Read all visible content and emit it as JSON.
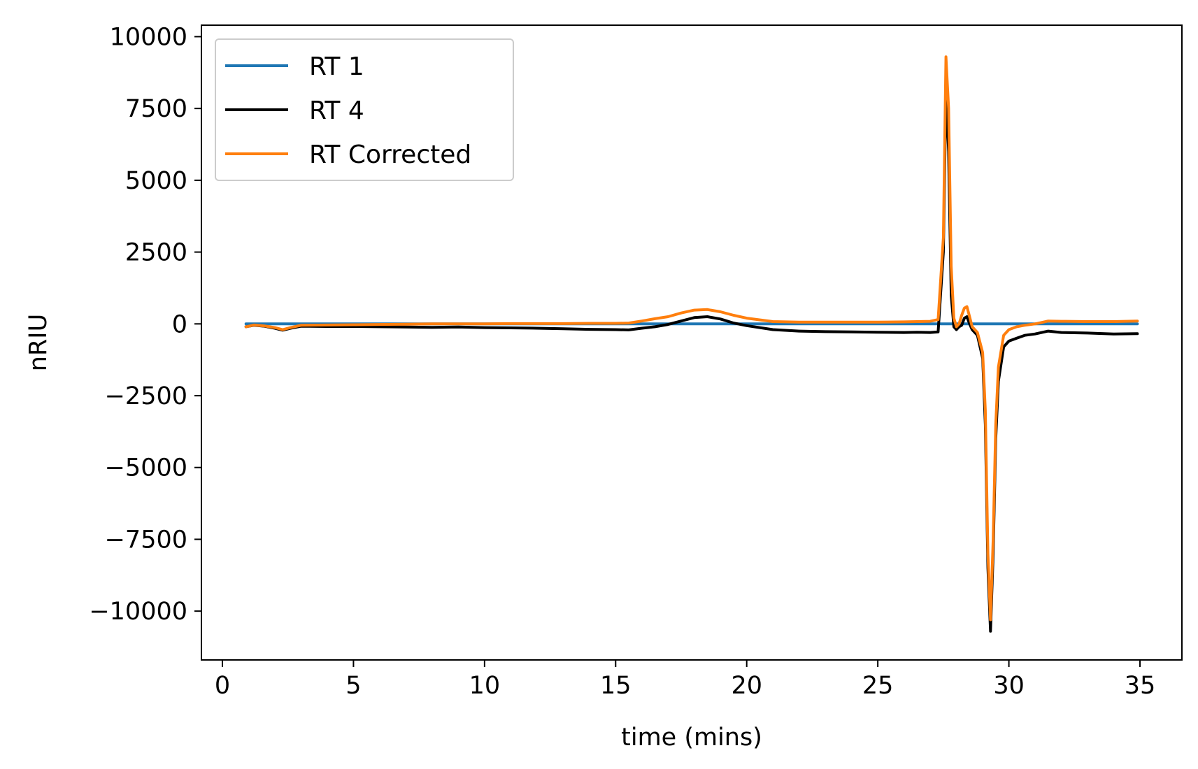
{
  "chart_data": {
    "type": "line",
    "title": "",
    "xlabel": "time (mins)",
    "ylabel": "nRIU",
    "xlim": [
      -0.8,
      36.6
    ],
    "ylim": [
      -11700,
      10400
    ],
    "xticks": [
      0,
      5,
      10,
      15,
      20,
      25,
      30,
      35
    ],
    "yticks": [
      10000,
      7500,
      5000,
      2500,
      0,
      -2500,
      -5000,
      -7500,
      -10000
    ],
    "xtick_labels": [
      "0",
      "5",
      "10",
      "15",
      "20",
      "25",
      "30",
      "35"
    ],
    "ytick_labels": [
      "10000",
      "7500",
      "5000",
      "2500",
      "0",
      "−2500",
      "−5000",
      "−7500",
      "−10000"
    ],
    "grid": false,
    "legend_position": "upper-left",
    "series": [
      {
        "name": "RT 1",
        "color": "#1f77b4",
        "x": [
          0.9,
          34.9
        ],
        "y": [
          0,
          0
        ]
      },
      {
        "name": "RT 4",
        "color": "#000000",
        "x": [
          0.9,
          1.2,
          1.6,
          2.0,
          2.3,
          2.6,
          3.0,
          4.0,
          5.0,
          6.0,
          7.0,
          8.0,
          9.0,
          10.0,
          11.0,
          12.0,
          13.0,
          14.0,
          15.0,
          15.5,
          16.0,
          16.5,
          17.0,
          17.5,
          18.0,
          18.5,
          19.0,
          19.5,
          20.0,
          21.0,
          22.0,
          23.0,
          24.0,
          25.0,
          26.0,
          26.5,
          27.0,
          27.3,
          27.5,
          27.6,
          27.7,
          27.8,
          27.9,
          28.0,
          28.1,
          28.2,
          28.3,
          28.4,
          28.5,
          28.6,
          28.8,
          29.0,
          29.1,
          29.2,
          29.3,
          29.4,
          29.5,
          29.6,
          29.8,
          30.0,
          30.3,
          30.6,
          31.0,
          31.5,
          32.0,
          33.0,
          34.0,
          34.9
        ],
        "y": [
          -100,
          -50,
          -80,
          -150,
          -220,
          -150,
          -80,
          -90,
          -90,
          -100,
          -110,
          -120,
          -110,
          -130,
          -140,
          -150,
          -170,
          -190,
          -200,
          -210,
          -150,
          -100,
          -20,
          100,
          220,
          250,
          170,
          30,
          -60,
          -200,
          -250,
          -270,
          -280,
          -290,
          -300,
          -290,
          -300,
          -280,
          2500,
          8200,
          6000,
          1000,
          -100,
          -200,
          -100,
          -50,
          200,
          250,
          0,
          -200,
          -400,
          -1200,
          -3500,
          -8500,
          -10700,
          -8000,
          -4000,
          -2000,
          -800,
          -600,
          -500,
          -400,
          -350,
          -250,
          -300,
          -320,
          -350,
          -340
        ]
      },
      {
        "name": "RT Corrected",
        "color": "#ff7f0e",
        "x": [
          0.9,
          1.2,
          1.6,
          2.0,
          2.3,
          2.6,
          3.0,
          4.0,
          5.0,
          6.0,
          7.0,
          8.0,
          9.0,
          10.0,
          11.0,
          12.0,
          13.0,
          14.0,
          15.0,
          15.5,
          16.0,
          16.5,
          17.0,
          17.5,
          18.0,
          18.5,
          19.0,
          19.5,
          20.0,
          21.0,
          22.0,
          23.0,
          24.0,
          25.0,
          26.0,
          26.5,
          27.0,
          27.3,
          27.5,
          27.6,
          27.7,
          27.8,
          27.9,
          28.0,
          28.1,
          28.2,
          28.3,
          28.4,
          28.5,
          28.6,
          28.8,
          29.0,
          29.1,
          29.2,
          29.3,
          29.4,
          29.5,
          29.6,
          29.8,
          30.0,
          30.3,
          30.6,
          31.0,
          31.5,
          32.0,
          33.0,
          34.0,
          34.9
        ],
        "y": [
          -100,
          -40,
          -70,
          -130,
          -200,
          -130,
          -50,
          -40,
          -30,
          -20,
          -10,
          0,
          0,
          0,
          10,
          10,
          10,
          20,
          20,
          30,
          100,
          180,
          250,
          380,
          480,
          500,
          420,
          300,
          200,
          80,
          60,
          60,
          60,
          60,
          70,
          80,
          90,
          150,
          3000,
          9300,
          7500,
          2000,
          200,
          -100,
          0,
          300,
          550,
          600,
          250,
          -100,
          -300,
          -1000,
          -3000,
          -8000,
          -10300,
          -7500,
          -3500,
          -1500,
          -400,
          -200,
          -100,
          -50,
          0,
          100,
          90,
          80,
          80,
          100
        ]
      }
    ]
  }
}
